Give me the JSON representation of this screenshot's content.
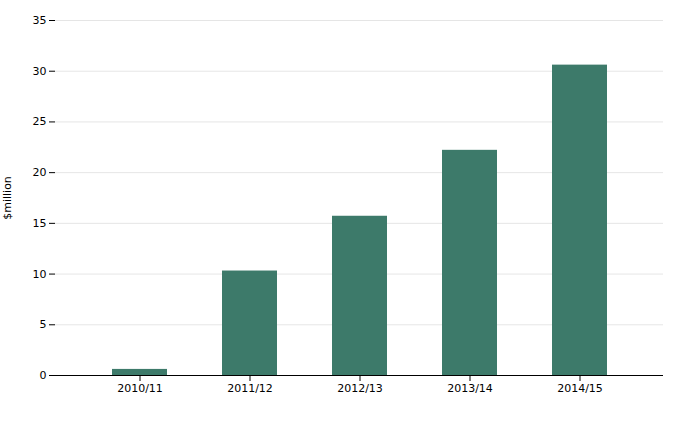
{
  "chart_data": {
    "type": "bar",
    "categories": [
      "2010/11",
      "2011/12",
      "2012/13",
      "2013/14",
      "2014/15"
    ],
    "values": [
      0.6,
      10.3,
      15.7,
      22.2,
      30.6
    ],
    "color": "#3d7a6a",
    "ylabel": "$million",
    "ylim": [
      0,
      35
    ],
    "yticks": [
      0,
      5,
      10,
      15,
      20,
      25,
      30,
      35
    ],
    "grid": true
  }
}
